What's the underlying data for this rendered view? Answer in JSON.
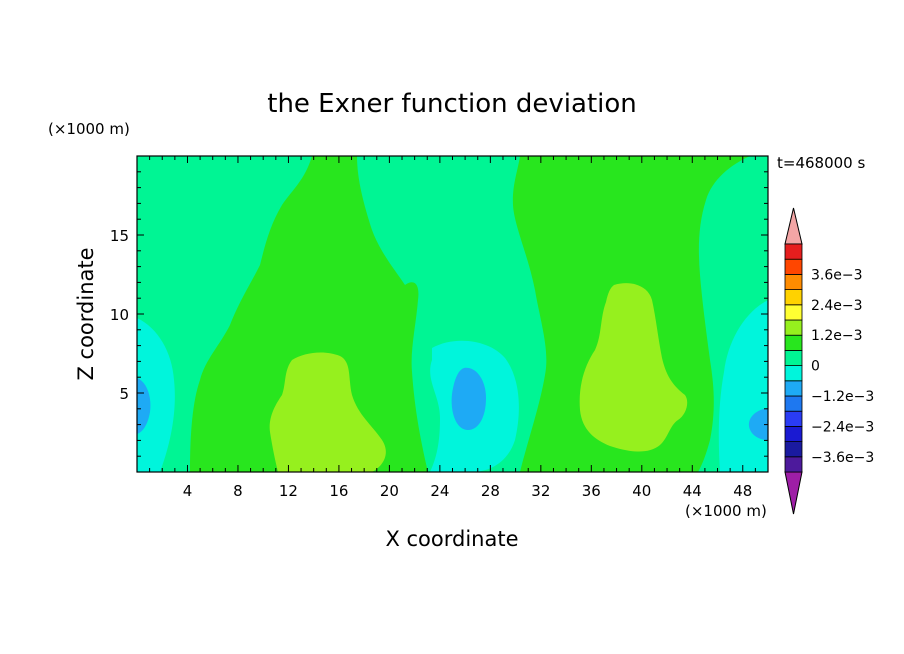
{
  "chart_data": {
    "type": "heatmap",
    "title": "the Exner function deviation",
    "xlabel": "X coordinate",
    "ylabel": "Z coordinate",
    "x_unit": "(×1000 m)",
    "z_unit": "(×1000 m)",
    "time_label": "t=468000 s",
    "xlim": [
      0,
      50
    ],
    "zlim": [
      0,
      20
    ],
    "x_ticks": [
      4,
      8,
      12,
      16,
      20,
      24,
      28,
      32,
      36,
      40,
      44,
      48
    ],
    "z_ticks": [
      5,
      10,
      15
    ],
    "colorbar": {
      "levels": [
        -0.0042,
        -0.0036,
        -0.003,
        -0.0024,
        -0.0018,
        -0.0012,
        -0.0006,
        0,
        0.0006,
        0.0012,
        0.0018,
        0.0024,
        0.003,
        0.0036,
        0.0042
      ],
      "colors": [
        "#4d1a9c",
        "#1a1aa0",
        "#1a1ad2",
        "#2a3cf5",
        "#1e78f0",
        "#1eaaf5",
        "#00f5dc",
        "#00f594",
        "#28e61e",
        "#96f01e",
        "#ffff32",
        "#ffd200",
        "#ff8c00",
        "#ff4600",
        "#e61e1e"
      ],
      "under_color": "#9e1ea6",
      "over_color": "#f3a5a5",
      "tick_labels": [
        {
          "value": 0.0036,
          "label": "3.6e−3"
        },
        {
          "value": 0.0024,
          "label": "2.4e−3"
        },
        {
          "value": 0.0012,
          "label": "1.2e−3"
        },
        {
          "value": 0,
          "label": "0"
        },
        {
          "value": -0.0012,
          "label": "−1.2e−3"
        },
        {
          "value": -0.0024,
          "label": "−2.4e−3"
        },
        {
          "value": -0.0036,
          "label": "−3.6e−3"
        }
      ]
    },
    "field_levels": [
      {
        "value_range": [
          -0.0006,
          0
        ],
        "color": "#00f594",
        "description_region": "background"
      },
      {
        "value_range": [
          0,
          0.0006
        ],
        "color": "#28e61e"
      },
      {
        "value_range": [
          0.0006,
          0.0012
        ],
        "color": "#96f01e"
      },
      {
        "value_range": [
          -0.0012,
          -0.0006
        ],
        "color": "#00f5dc"
      },
      {
        "value_range": [
          -0.0018,
          -0.0012
        ],
        "color": "#1eaaf5"
      }
    ]
  }
}
